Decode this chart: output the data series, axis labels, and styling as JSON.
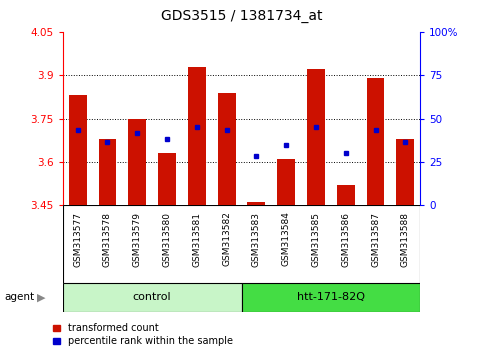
{
  "title": "GDS3515 / 1381734_at",
  "samples": [
    "GSM313577",
    "GSM313578",
    "GSM313579",
    "GSM313580",
    "GSM313581",
    "GSM313582",
    "GSM313583",
    "GSM313584",
    "GSM313585",
    "GSM313586",
    "GSM313587",
    "GSM313588"
  ],
  "red_values": [
    3.83,
    3.68,
    3.75,
    3.63,
    3.93,
    3.84,
    3.46,
    3.61,
    3.92,
    3.52,
    3.89,
    3.68
  ],
  "blue_values": [
    3.71,
    3.67,
    3.7,
    3.68,
    3.72,
    3.71,
    3.62,
    3.66,
    3.72,
    3.63,
    3.71,
    3.67
  ],
  "ymin": 3.45,
  "ymax": 4.05,
  "y_ticks_left": [
    3.45,
    3.6,
    3.75,
    3.9,
    4.05
  ],
  "y_ticks_left_labels": [
    "3.45",
    "3.6",
    "3.75",
    "3.9",
    "4.05"
  ],
  "y_ticks_right_vals": [
    3.45,
    3.6,
    3.75,
    3.9,
    4.05
  ],
  "y_ticks_right_labels": [
    "0",
    "25",
    "50",
    "75",
    "100%"
  ],
  "grid_lines": [
    3.6,
    3.75,
    3.9
  ],
  "groups": [
    {
      "label": "control",
      "start": 0,
      "end": 6,
      "color": "#c8f5c8"
    },
    {
      "label": "htt-171-82Q",
      "start": 6,
      "end": 12,
      "color": "#44dd44"
    }
  ],
  "agent_label": "agent",
  "bar_color": "#cc1100",
  "dot_color": "#0000cc",
  "bar_width": 0.6,
  "legend_items": [
    {
      "color": "#cc1100",
      "label": "transformed count"
    },
    {
      "color": "#0000cc",
      "label": "percentile rank within the sample"
    }
  ]
}
